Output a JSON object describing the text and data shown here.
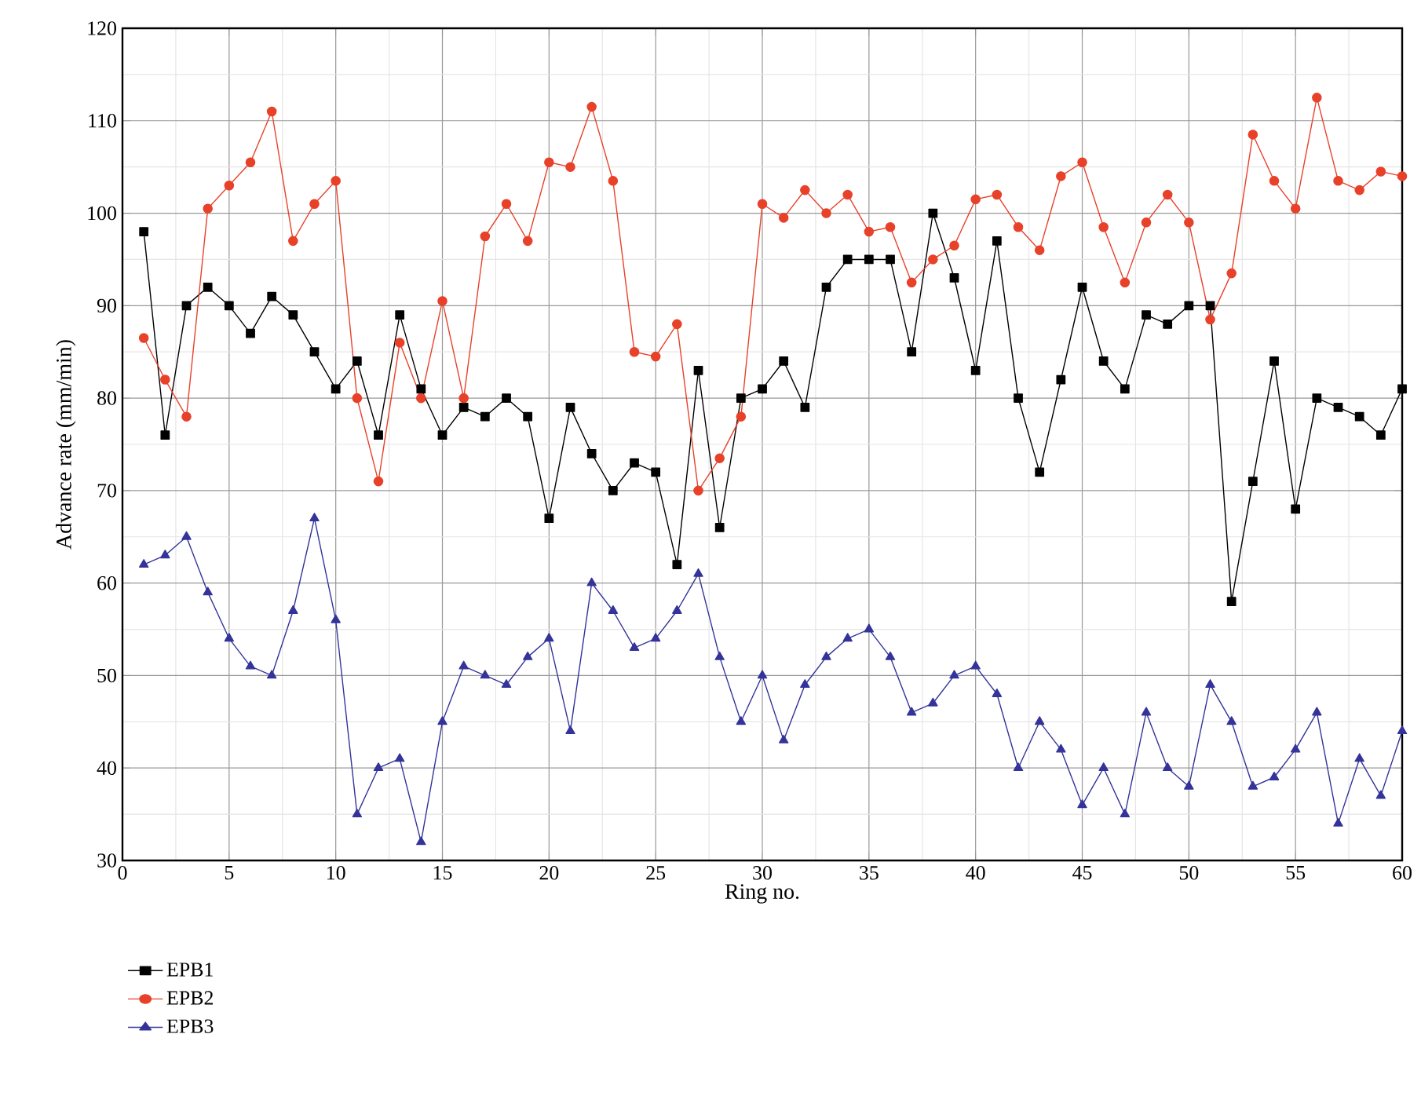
{
  "chart_data": {
    "type": "line",
    "xlabel": "Ring no.",
    "ylabel": "Advance rate (mm/min)",
    "x": [
      1,
      2,
      3,
      4,
      5,
      6,
      7,
      8,
      9,
      10,
      11,
      12,
      13,
      14,
      15,
      16,
      17,
      18,
      19,
      20,
      21,
      22,
      23,
      24,
      25,
      26,
      27,
      28,
      29,
      30,
      31,
      32,
      33,
      34,
      35,
      36,
      37,
      38,
      39,
      40,
      41,
      42,
      43,
      44,
      45,
      46,
      47,
      48,
      49,
      50,
      51,
      52,
      53,
      54,
      55,
      56,
      57,
      58,
      59,
      60
    ],
    "series": [
      {
        "name": "EPB1",
        "color": "#000000",
        "marker": "square",
        "values": [
          98,
          76,
          90,
          92,
          90,
          87,
          91,
          89,
          85,
          81,
          84,
          76,
          89,
          81,
          76,
          79,
          78,
          80,
          78,
          67,
          79,
          74,
          70,
          73,
          72,
          62,
          83,
          66,
          80,
          81,
          84,
          79,
          92,
          95,
          95,
          95,
          85,
          100,
          93,
          83,
          97,
          80,
          72,
          82,
          92,
          84,
          81,
          89,
          88,
          90,
          90,
          58,
          71,
          84,
          68,
          80,
          79,
          78,
          76,
          81
        ]
      },
      {
        "name": "EPB2",
        "color": "#e8412a",
        "marker": "circle",
        "values": [
          86.5,
          82,
          78,
          100.5,
          103,
          105.5,
          111,
          97,
          101,
          103.5,
          80,
          71,
          86,
          80,
          90.5,
          80,
          97.5,
          101,
          97,
          105.5,
          105,
          111.5,
          103.5,
          85,
          84.5,
          88,
          70,
          73.5,
          78,
          101,
          99.5,
          102.5,
          100,
          102,
          98,
          98.5,
          92.5,
          95,
          96.5,
          101.5,
          102,
          98.5,
          96,
          104,
          105.5,
          98.5,
          92.5,
          99,
          102,
          99,
          88.5,
          93.5,
          108.5,
          103.5,
          100.5,
          112.5,
          103.5,
          102.5,
          104.5,
          104
        ]
      },
      {
        "name": "EPB3",
        "color": "#33339a",
        "marker": "triangle",
        "values": [
          62,
          63,
          65,
          59,
          54,
          51,
          50,
          57,
          67,
          56,
          35,
          40,
          41,
          32,
          45,
          51,
          50,
          49,
          52,
          54,
          44,
          60,
          57,
          53,
          54,
          57,
          61,
          52,
          45,
          50,
          43,
          49,
          52,
          54,
          55,
          52,
          46,
          47,
          50,
          51,
          48,
          40,
          45,
          42,
          36,
          40,
          35,
          46,
          40,
          38,
          49,
          45,
          38,
          39,
          42,
          46,
          34,
          41,
          37,
          44
        ]
      }
    ],
    "xlim": [
      0,
      60
    ],
    "ylim": [
      30,
      120
    ],
    "xticks": [
      0,
      5,
      10,
      15,
      20,
      25,
      30,
      35,
      40,
      45,
      50,
      55,
      60
    ],
    "yticks": [
      30,
      40,
      50,
      60,
      70,
      80,
      90,
      100,
      110,
      120
    ],
    "grid": true,
    "legend": "bottom left",
    "line_style": "solid"
  }
}
